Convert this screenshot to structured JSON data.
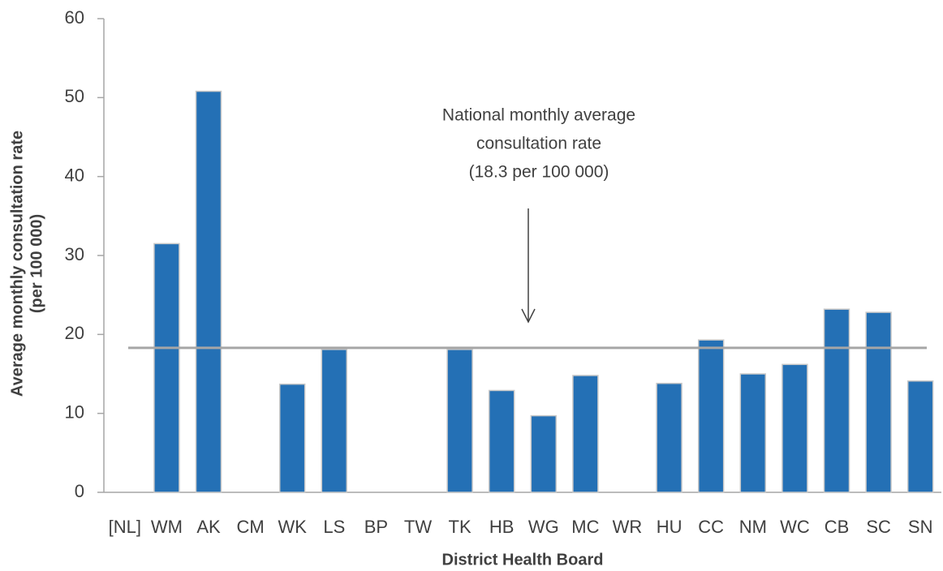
{
  "chart_data": {
    "type": "bar",
    "xlabel": "District Health Board",
    "ylabel": [
      "Average monthly consultation rate",
      "(per 100 000)"
    ],
    "categories": [
      "[NL]",
      "WM",
      "AK",
      "CM",
      "WK",
      "LS",
      "BP",
      "TW",
      "TK",
      "HB",
      "WG",
      "MC",
      "WR",
      "HU",
      "CC",
      "NM",
      "WC",
      "CB",
      "SC",
      "SN"
    ],
    "values": [
      null,
      31.5,
      50.8,
      null,
      13.7,
      18.1,
      null,
      null,
      18.1,
      12.9,
      9.7,
      14.8,
      null,
      13.8,
      19.3,
      15.0,
      16.2,
      23.2,
      22.8,
      14.1
    ],
    "color": "#2470b5",
    "ylim": [
      0,
      60
    ],
    "yticks": [
      0,
      10,
      20,
      30,
      40,
      50,
      60
    ],
    "reference_line": {
      "value": 18.3,
      "color": "#a6a6a6",
      "label": [
        "National monthly average",
        "consultation rate",
        "(18.3 per 100 000)"
      ]
    }
  }
}
